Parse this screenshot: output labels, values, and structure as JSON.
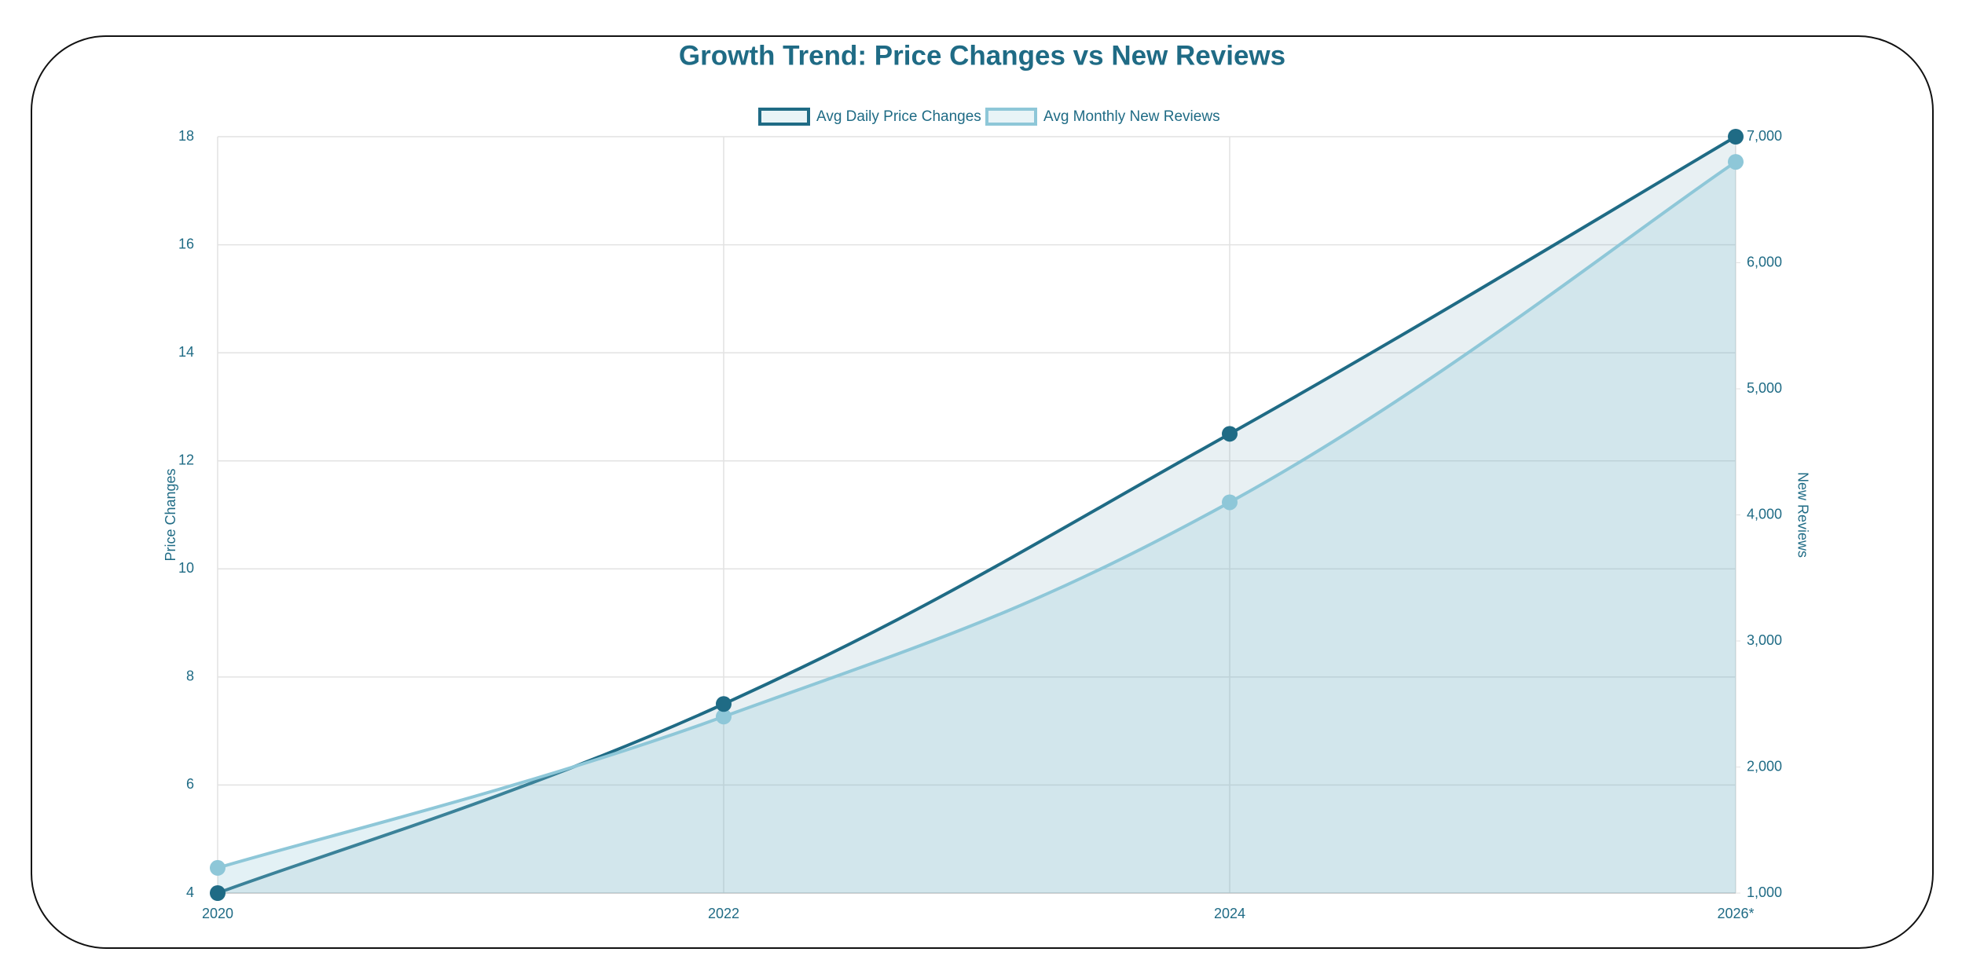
{
  "chart_data": {
    "type": "line",
    "title": "Growth Trend: Price Changes vs New Reviews",
    "categories": [
      "2020",
      "2022",
      "2024",
      "2026*"
    ],
    "series": [
      {
        "name": "Avg Daily Price Changes",
        "color": "#1f6b85",
        "values": [
          4,
          7.5,
          12.5,
          18
        ]
      },
      {
        "name": "Avg Monthly New Reviews",
        "color": "#8ec7d8",
        "axis": "y2",
        "values": [
          1200,
          2400,
          4100,
          6800
        ]
      }
    ],
    "ylabel": "Price Changes",
    "y2label": "New Reviews",
    "ylim": [
      4,
      18
    ],
    "yticks": [
      4,
      6,
      8,
      10,
      12,
      14,
      16,
      18
    ],
    "y2lim": [
      1000,
      7000
    ],
    "y2ticks": [
      {
        "value": 1000,
        "label": "1,000"
      },
      {
        "value": 2000,
        "label": "2,000"
      },
      {
        "value": 3000,
        "label": "3,000"
      },
      {
        "value": 4000,
        "label": "4,000"
      },
      {
        "value": 5000,
        "label": "5,000"
      },
      {
        "value": 6000,
        "label": "6,000"
      },
      {
        "value": 7000,
        "label": "7,000"
      }
    ],
    "grid": true,
    "legend": "top",
    "filled": true
  }
}
